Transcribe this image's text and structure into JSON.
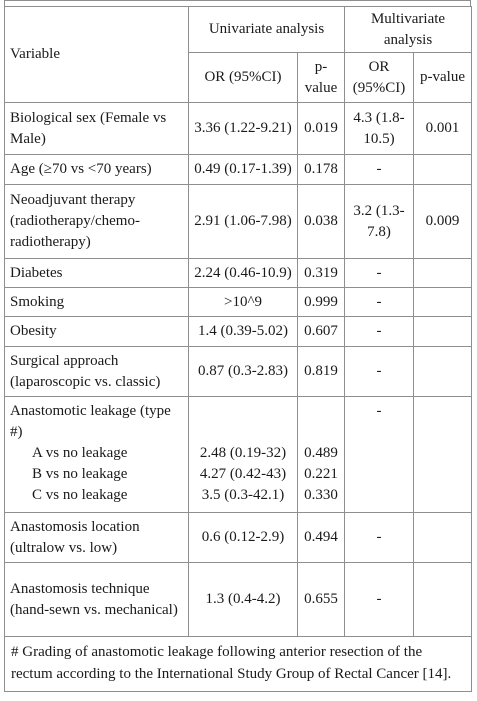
{
  "header": {
    "variable": "Variable",
    "univariate": "Univariate analysis",
    "multivariate": "Multivariate analysis",
    "or_ci": "OR (95%CI)",
    "p_value": "p-value"
  },
  "rows": {
    "sex": {
      "label": "Biological sex (Female vs Male)",
      "u_or": "3.36 (1.22-9.21)",
      "u_p": "0.019",
      "m_or": "4.3 (1.8-10.5)",
      "m_p": "0.001"
    },
    "age": {
      "label": "Age (≥70 vs <70 years)",
      "u_or": "0.49 (0.17-1.39)",
      "u_p": "0.178",
      "m_or": "-",
      "m_p": ""
    },
    "neo": {
      "label": "Neoadjuvant therapy (radiotherapy/chemo-radiotherapy)",
      "u_or": "2.91 (1.06-7.98)",
      "u_p": "0.038",
      "m_or": "3.2 (1.3-7.8)",
      "m_p": "0.009"
    },
    "diabetes": {
      "label": "Diabetes",
      "u_or": "2.24 (0.46-10.9)",
      "u_p": "0.319",
      "m_or": "-",
      "m_p": ""
    },
    "smoking": {
      "label": "Smoking",
      "u_or": ">10^9",
      "u_p": "0.999",
      "m_or": "-",
      "m_p": ""
    },
    "obesity": {
      "label": "Obesity",
      "u_or": "1.4 (0.39-5.02)",
      "u_p": "0.607",
      "m_or": "-",
      "m_p": ""
    },
    "surgical": {
      "label": "Surgical approach (laparoscopic vs. classic)",
      "u_or": "0.87 (0.3-2.83)",
      "u_p": "0.819",
      "m_or": "-",
      "m_p": ""
    },
    "leak": {
      "label": "Anastomotic leakage (type #)",
      "m_or": "-",
      "a_label": "A vs no leakage",
      "a_or": "2.48 (0.19-32)",
      "a_p": "0.489",
      "b_label": "B vs no leakage",
      "b_or": "4.27 (0.42-43)",
      "b_p": "0.221",
      "c_label": "C vs no leakage",
      "c_or": "3.5 (0.3-42.1)",
      "c_p": "0.330"
    },
    "location": {
      "label": "Anastomosis location (ultralow vs. low)",
      "u_or": "0.6 (0.12-2.9)",
      "u_p": "0.494",
      "m_or": "-",
      "m_p": ""
    },
    "technique": {
      "label": "Anastomosis technique (hand-sewn vs. mechanical)",
      "u_or": "1.3 (0.4-4.2)",
      "u_p": "0.655",
      "m_or": "-",
      "m_p": ""
    }
  },
  "footnote": "# Grading of anastomotic leakage following anterior resection of the rectum according to the International Study Group of Rectal Cancer [14]."
}
